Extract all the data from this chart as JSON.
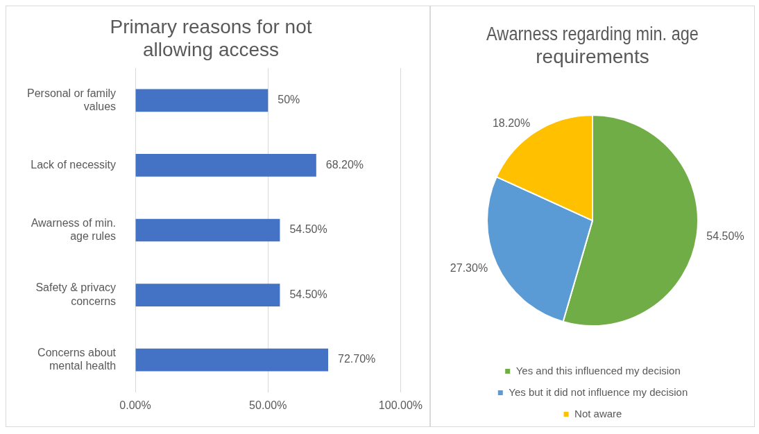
{
  "chart_data": [
    {
      "type": "bar",
      "title": "Primary reasons for not allowing access",
      "orientation": "horizontal",
      "categories": [
        "Personal or family values",
        "Lack of necessity",
        "Awarness of min. age rules",
        "Safety & privacy concerns",
        "Concerns about mental health"
      ],
      "values": [
        50,
        68.2,
        54.5,
        54.5,
        72.7
      ],
      "value_labels": [
        "50%",
        "68.20%",
        "54.50%",
        "54.50%",
        "72.70%"
      ],
      "color": "#4472c4",
      "xlim": [
        0,
        100
      ],
      "xticks": [
        {
          "value": 0,
          "label": "0.00%"
        },
        {
          "value": 50,
          "label": "50.00%"
        },
        {
          "value": 100,
          "label": "100.00%"
        }
      ],
      "grid": "x",
      "legend": false
    },
    {
      "type": "pie",
      "title": "Awarness regarding min. age requirements",
      "categories": [
        "Yes and this influenced my decision",
        "Yes but it did not influence my decision",
        "Not aware"
      ],
      "values": [
        54.5,
        27.3,
        18.2
      ],
      "value_labels": [
        "54.50%",
        "27.30%",
        "18.20%"
      ],
      "colors": [
        "#70ad47",
        "#5b9bd5",
        "#ffc000"
      ],
      "legend": "bottom"
    }
  ]
}
